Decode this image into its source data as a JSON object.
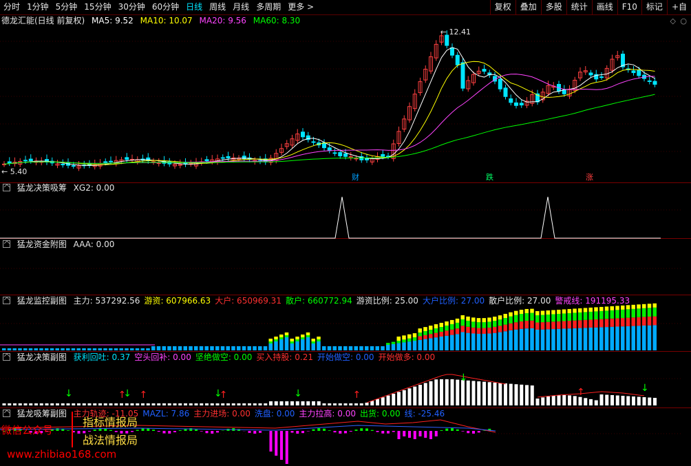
{
  "toolbar": {
    "periods": [
      "分时",
      "1分钟",
      "5分钟",
      "15分钟",
      "30分钟",
      "60分钟",
      "日线",
      "周线",
      "月线",
      "多周期",
      "更多 >"
    ],
    "active_period": "日线",
    "right_buttons": [
      "复权",
      "叠加",
      "多股",
      "统计",
      "画线",
      "F10",
      "标记",
      "+自"
    ]
  },
  "main": {
    "title": "德龙汇能(日线 前复权)",
    "ma5": "MA5: 9.52",
    "ma10": "MA10: 10.07",
    "ma20": "MA20: 9.56",
    "ma60": "MA60: 8.30",
    "high_label": "12.41",
    "low_label": "5.40",
    "tags": {
      "cai": "财",
      "die": "跌",
      "zhang": "涨"
    },
    "colors": {
      "ma5": "#ffffff",
      "ma10": "#ffff00",
      "ma20": "#ff44ff",
      "ma60": "#00ff00",
      "up": "#ff4040",
      "down": "#00e5ff"
    }
  },
  "p1": {
    "name": "猛龙决策吸筹",
    "value": "XG2: 0.00"
  },
  "p2": {
    "name": "猛龙资金附图",
    "value": "AAA: 0.00"
  },
  "p3": {
    "name": "猛龙监控副图",
    "items": [
      {
        "text": "主力: 537292.56",
        "color": "#e6e6e6"
      },
      {
        "text": "游资: 607966.63",
        "color": "#ffff00"
      },
      {
        "text": "大户: 650969.31",
        "color": "#ff3030"
      },
      {
        "text": "散户: 660772.94",
        "color": "#00ff00"
      },
      {
        "text": "游资比例: 25.00",
        "color": "#e6e6e6"
      },
      {
        "text": "大户比例: 27.00",
        "color": "#2060ff"
      },
      {
        "text": "散户比例: 27.00",
        "color": "#e6e6e6"
      },
      {
        "text": "警戒线: 191195.33",
        "color": "#ff44ff"
      }
    ]
  },
  "p4": {
    "name": "猛龙决策副图",
    "items": [
      {
        "text": "获利回吐: 0.37",
        "color": "#00e5ff"
      },
      {
        "text": "空头回补: 0.00",
        "color": "#ff44ff"
      },
      {
        "text": "坚绝做空: 0.00",
        "color": "#00ff00"
      },
      {
        "text": "买入持股: 0.21",
        "color": "#ff3030"
      },
      {
        "text": "开始做空: 0.00",
        "color": "#2060ff"
      },
      {
        "text": "开始做多: 0.00",
        "color": "#ff3030"
      }
    ]
  },
  "p5": {
    "name": "猛龙吸筹副图",
    "items": [
      {
        "text": "主力轨迹: -11.05",
        "color": "#ff3030"
      },
      {
        "text": "MAZL: 7.86",
        "color": "#2060ff"
      },
      {
        "text": "主力进场: 0.00",
        "color": "#ff3030"
      },
      {
        "text": "洗盘: 0.00",
        "color": "#2060ff"
      },
      {
        "text": "主力拉高: 0.00",
        "color": "#ff44ff"
      },
      {
        "text": "出货: 0.00",
        "color": "#00ff00"
      },
      {
        "text": "线: -25.46",
        "color": "#2060ff"
      }
    ]
  },
  "watermark": {
    "wechat": "微信公众号",
    "site": "www.zhibiao168.com",
    "book1": "指标情报局",
    "book2": "战法情报局"
  }
}
